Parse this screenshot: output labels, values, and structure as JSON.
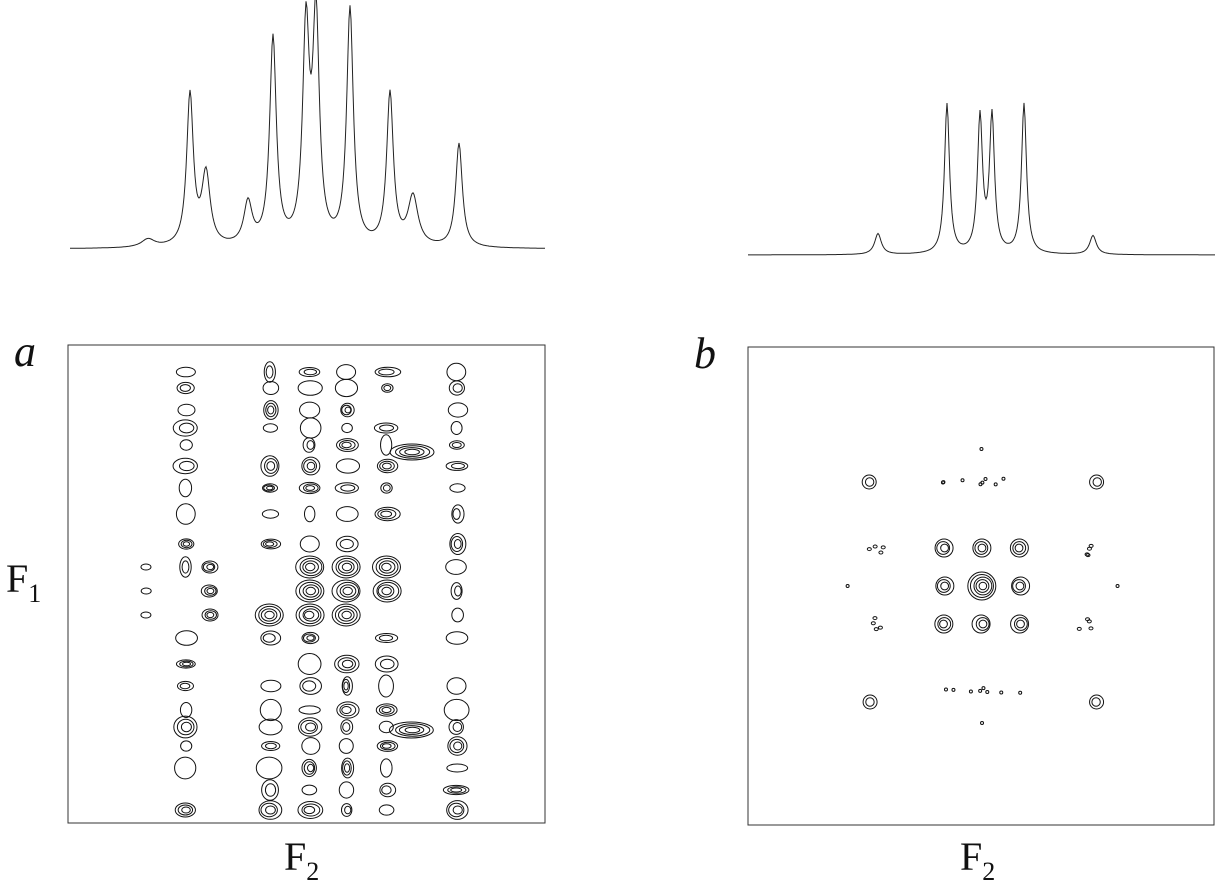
{
  "panels": [
    {
      "letter": "a",
      "x_label": {
        "main": "F",
        "sub": "2"
      },
      "y_label": {
        "main": "F",
        "sub": "1"
      }
    },
    {
      "letter": "b",
      "x_label": {
        "main": "F",
        "sub": "2"
      }
    }
  ]
}
